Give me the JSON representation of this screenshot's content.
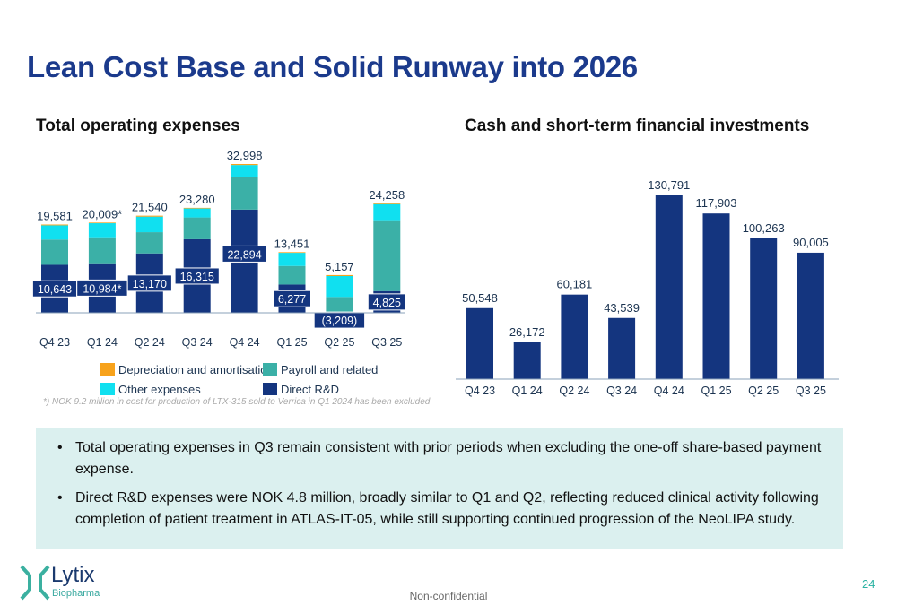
{
  "title": "Lean Cost Base and Solid Runway into 2026",
  "left_subtitle": "Total operating expenses",
  "right_subtitle": "Cash and short-term financial investments",
  "footnote": "*) NOK 9.2 million in cost for production of LTX-315 sold to Verrica in Q1 2024 has been excluded",
  "bullets": [
    "Total operating expenses in Q3 remain consistent with prior periods when excluding the one-off share-based payment expense.",
    "Direct R&D expenses were NOK 4.8 million, broadly similar to Q1 and Q2, reflecting reduced clinical activity following completion of patient treatment in ATLAS-IT-05, while still supporting continued progression of the NeoLIPA study."
  ],
  "page_number": "24",
  "confidentiality": "Non-confidential",
  "logo": {
    "name": "Lytix",
    "tagline": "Biopharma"
  },
  "chart_data": [
    {
      "type": "bar",
      "stacked": true,
      "categories": [
        "Q4 23",
        "Q1 24",
        "Q2 24",
        "Q3 24",
        "Q4 24",
        "Q1 25",
        "Q2 25",
        "Q3 25"
      ],
      "totals": [
        19581,
        20009,
        21540,
        23280,
        32998,
        13451,
        5157,
        24258
      ],
      "total_labels": [
        "19,581",
        "20,009*",
        "21,540",
        "23,280",
        "32,998",
        "13,451",
        "5,157",
        "24,258"
      ],
      "rd_labels": [
        "10,643",
        "10,984*",
        "13,170",
        "16,315",
        "22,894",
        "6,277",
        "(3,209)",
        "4,825"
      ],
      "series": [
        {
          "name": "Direct R&D",
          "color": "#14357f",
          "values": [
            10643,
            10984,
            13170,
            16315,
            22894,
            6277,
            -3209,
            4825
          ]
        },
        {
          "name": "Payroll and related",
          "color": "#3bb0a7",
          "values": [
            5600,
            5770,
            4710,
            4840,
            7290,
            4110,
            3510,
            15720
          ]
        },
        {
          "name": "Other expenses",
          "color": "#10e0f0",
          "values": [
            3150,
            3120,
            3450,
            1990,
            2590,
            2920,
            4640,
            3560
          ]
        },
        {
          "name": "Depreciation and amortisation",
          "color": "#f7a21b",
          "values": [
            188,
            135,
            210,
            135,
            224,
            144,
            216,
            153
          ]
        }
      ],
      "legend_order": [
        "Depreciation and amortisation",
        "Payroll and related",
        "Other expenses",
        "Direct R&D"
      ],
      "legend": "bottom",
      "grid": false
    },
    {
      "type": "bar",
      "categories": [
        "Q4 23",
        "Q1 24",
        "Q2 24",
        "Q3 24",
        "Q4 24",
        "Q1 25",
        "Q2 25",
        "Q3 25"
      ],
      "values": [
        50548,
        26172,
        60181,
        43539,
        130791,
        117903,
        100263,
        90005
      ],
      "labels": [
        "50,548",
        "26,172",
        "60,181",
        "43,539",
        "130,791",
        "117,903",
        "100,263",
        "90,005"
      ],
      "color": "#14357f",
      "grid": false
    }
  ]
}
